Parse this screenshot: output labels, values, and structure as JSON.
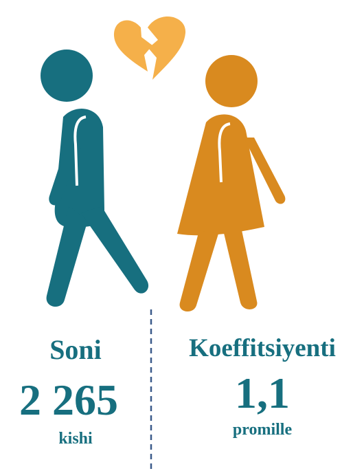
{
  "left": {
    "label": "Soni",
    "value": "2 265",
    "unit": "kishi"
  },
  "right": {
    "label": "Koeffitsiyenti",
    "value": "1,1",
    "unit": "promille"
  }
}
